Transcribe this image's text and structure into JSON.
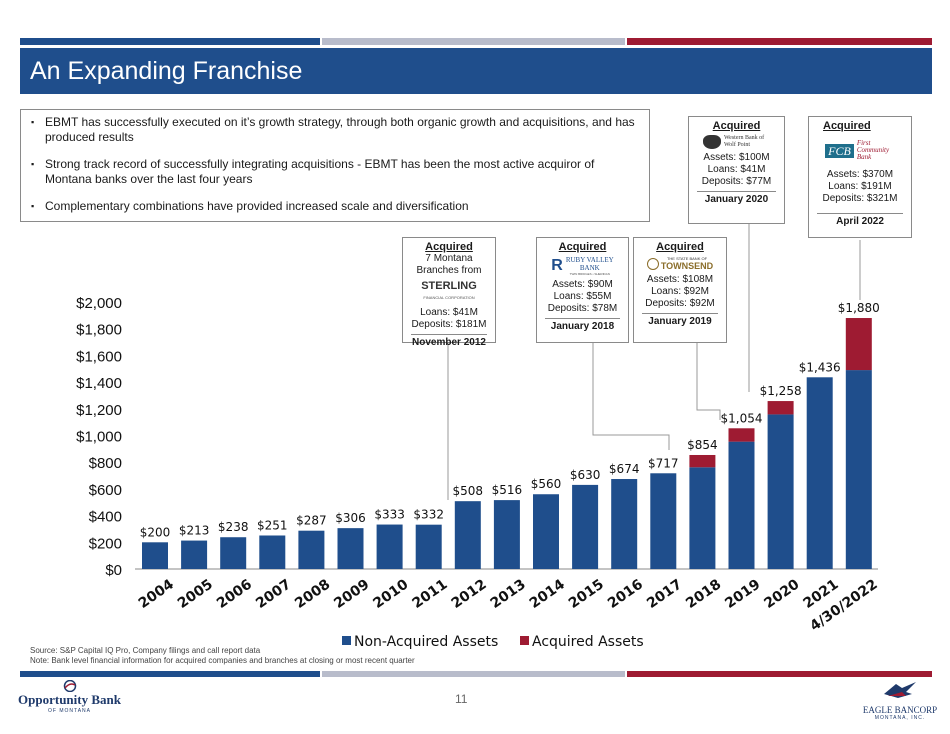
{
  "title": "An Expanding Franchise",
  "bullets": [
    "EBMT has successfully executed on it’s growth strategy, through both organic growth and acquisitions, and has produced results",
    "Strong track record of successfully integrating acquisitions - EBMT has been the most active acquiror of Montana banks over the last four years",
    "Complementary combinations have provided increased scale and diversification"
  ],
  "bullet_marker": "▪",
  "acquisitions": {
    "sterling": {
      "heading": "Acquired",
      "subtitle": "7 Montana Branches from",
      "logo_text": "STERLING",
      "logo_sub": "FINANCIAL CORPORATION",
      "line1": "Loans: $41M",
      "line2": "Deposits: $181M",
      "date": "November 2012"
    },
    "ruby": {
      "heading": "Acquired",
      "logo_text": "RUBY VALLEY BANK",
      "logo_sub": "TWIN BRIDGES • SHERIDAN",
      "line1": "Assets: $90M",
      "line2": "Loans: $55M",
      "line3": "Deposits: $78M",
      "date": "January 2018"
    },
    "townsend": {
      "heading": "Acquired",
      "logo_text": "TOWNSEND",
      "logo_sub": "THE STATE BANK OF",
      "line1": "Assets: $108M",
      "line2": "Loans: $92M",
      "line3": "Deposits: $92M",
      "date": "January 2019"
    },
    "wolfpoint": {
      "heading": "Acquired",
      "logo_text": "Western Bank of Wolf Point",
      "line1": "Assets: $100M",
      "line2": "Loans: $41M",
      "line3": "Deposits: $77M",
      "date": "January 2020"
    },
    "fcb": {
      "heading": "Acquired",
      "logo_text": "FCB",
      "logo_sub": "First Community Bank",
      "line1": "Assets: $370M",
      "line2": "Loans: $191M",
      "line3": "Deposits: $321M",
      "date": "April 2022"
    }
  },
  "chart_data": {
    "type": "bar",
    "stacked": true,
    "categories": [
      "2004",
      "2005",
      "2006",
      "2007",
      "2008",
      "2009",
      "2010",
      "2011",
      "2012",
      "2013",
      "2014",
      "2015",
      "2016",
      "2017",
      "2018",
      "2019",
      "2020",
      "2021",
      "4/30/2022"
    ],
    "series": [
      {
        "name": "Non-Acquired Assets",
        "color": "#1f4e8c",
        "values": [
          200,
          213,
          238,
          251,
          287,
          306,
          333,
          332,
          508,
          516,
          560,
          630,
          674,
          717,
          762,
          954,
          1158,
          1436,
          1490
        ]
      },
      {
        "name": "Acquired Assets",
        "color": "#9e1b32",
        "values": [
          0,
          0,
          0,
          0,
          0,
          0,
          0,
          0,
          0,
          0,
          0,
          0,
          0,
          0,
          92,
          100,
          100,
          0,
          390
        ]
      }
    ],
    "totals": [
      "$200",
      "$213",
      "$238",
      "$251",
      "$287",
      "$306",
      "$333",
      "$332",
      "$508",
      "$516",
      "$560",
      "$630",
      "$674",
      "$717",
      "$854",
      "$1,054",
      "$1,258",
      "$1,436",
      "$1,880"
    ],
    "total_values": [
      200,
      213,
      238,
      251,
      287,
      306,
      333,
      332,
      508,
      516,
      560,
      630,
      674,
      717,
      854,
      1054,
      1258,
      1436,
      1880
    ],
    "ylim": [
      0,
      2000
    ],
    "yticks": [
      "$0",
      "$200",
      "$400",
      "$600",
      "$800",
      "$1,000",
      "$1,200",
      "$1,400",
      "$1,600",
      "$1,800",
      "$2,000"
    ],
    "ytick_values": [
      0,
      200,
      400,
      600,
      800,
      1000,
      1200,
      1400,
      1600,
      1800,
      2000
    ],
    "legend_position": "bottom",
    "grid": false
  },
  "footnotes": {
    "source": "Source: S&P Capital IQ Pro, Company filings and call report data",
    "note": "Note: Bank level financial information for acquired companies and branches at closing or most recent quarter"
  },
  "page_number": "11",
  "logos": {
    "opportunity": {
      "name": "Opportunity Bank",
      "sub": "OF MONTANA"
    },
    "eagle": {
      "name": "EAGLE BANCORP",
      "sub": "MONTANA, INC."
    }
  },
  "colors": {
    "blue": "#1f4e8c",
    "red": "#9e1b32",
    "gray": "#b8bccb"
  }
}
